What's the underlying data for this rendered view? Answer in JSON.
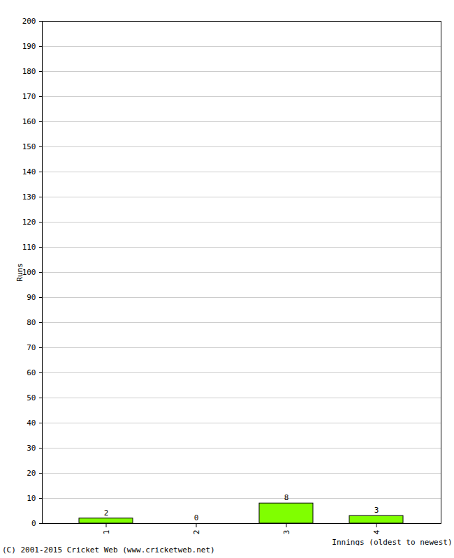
{
  "chart_data": {
    "type": "bar",
    "caption": "(C) 2001-2015 Cricket Web (www.cricketweb.net)",
    "x_label": "Innings (oldest to newest)",
    "y_label": "Runs",
    "categories": [
      "1",
      "2",
      "3",
      "4"
    ],
    "values": [
      2,
      0,
      8,
      3
    ],
    "color": "#80ff00",
    "ylim": [
      0,
      200
    ],
    "yticks": [
      0,
      10,
      20,
      30,
      40,
      50,
      60,
      70,
      80,
      90,
      100,
      110,
      120,
      130,
      140,
      150,
      160,
      170,
      180,
      190,
      200
    ],
    "grid": true,
    "data_labels": true
  }
}
